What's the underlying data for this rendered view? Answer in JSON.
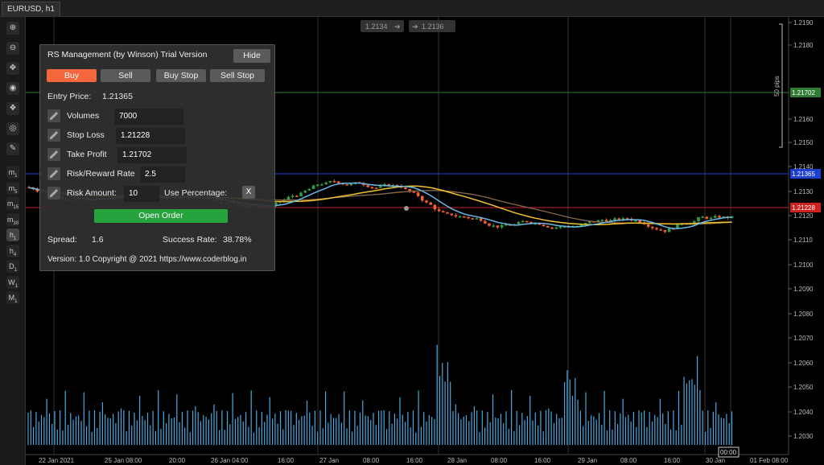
{
  "tab": {
    "title": "EURUSD, h1"
  },
  "toolbar": {
    "icons": [
      "zoom-in-icon",
      "zoom-out-icon",
      "crosshair-icon",
      "globe-icon",
      "layers-icon",
      "eye-icon",
      "settings-icon"
    ],
    "timeframes": [
      {
        "main": "m",
        "sub": "1"
      },
      {
        "main": "m",
        "sub": "5"
      },
      {
        "main": "m",
        "sub": "15"
      },
      {
        "main": "m",
        "sub": "30"
      },
      {
        "main": "h",
        "sub": "1"
      },
      {
        "main": "h",
        "sub": "4"
      },
      {
        "main": "D",
        "sub": "1"
      },
      {
        "main": "W",
        "sub": "1"
      },
      {
        "main": "M",
        "sub": "1"
      }
    ]
  },
  "chart": {
    "bid_label": "1.2134",
    "ask_label": "1.2136",
    "pips_label": "50 pips",
    "price_ticks": [
      "1.2190",
      "1.2180",
      "1.2160",
      "1.2150",
      "1.2140",
      "1.2130",
      "1.2120",
      "1.2110",
      "1.2100",
      "1.2090",
      "1.2080",
      "1.2070",
      "1.2060",
      "1.2050",
      "1.2040",
      "1.2030"
    ],
    "tp_label": "1.21702",
    "entry_label": "1.21365",
    "sl_label": "1.21228",
    "time_labels": [
      "22 Jan 2021",
      "25 Jan 08:00",
      "20:00",
      "26 Jan 04:00",
      "16:00",
      "27 Jan",
      "08:00",
      "16:00",
      "28 Jan",
      "08:00",
      "16:00",
      "29 Jan",
      "08:00",
      "16:00",
      "30 Jan",
      "01 Feb 08:00"
    ],
    "current_time": "00:00",
    "colors": {
      "bull": "#2e9e44",
      "bear": "#f0602c",
      "ma_fast": "#6ab8e8",
      "ma_slow": "#f2c12e",
      "ma_long": "#8a6a48",
      "tp_line": "#2e7d32",
      "entry_line": "#1f3fd0",
      "sl_line": "#cc2222",
      "volume": "#4aa8e0"
    }
  },
  "panel": {
    "title": "RS Management (by Winson) Trial Version",
    "hide_label": "Hide",
    "buttons": [
      "Buy",
      "Sell",
      "Buy Stop",
      "Sell Stop"
    ],
    "entry_price_label": "Entry Price:",
    "entry_price_value": "1.21365",
    "volumes_label": "Volumes",
    "volumes_value": "7000",
    "stop_loss_label": "Stop Loss",
    "stop_loss_value": "1.21228",
    "take_profit_label": "Take Profit",
    "take_profit_value": "1.21702",
    "rr_label": "Risk/Reward Rate",
    "rr_value": "2.5",
    "risk_amount_label": "Risk Amount:",
    "risk_amount_value": "10",
    "use_percentage_label": "Use Percentage:",
    "use_percentage_toggle": "X",
    "open_order_label": "Open Order",
    "spread_label": "Spread:",
    "spread_value": "1.6",
    "success_label": "Success Rate:",
    "success_value": "38.78%",
    "version_text": "Version: 1.0  Copyright @ 2021 https://www.coderblog.in"
  }
}
